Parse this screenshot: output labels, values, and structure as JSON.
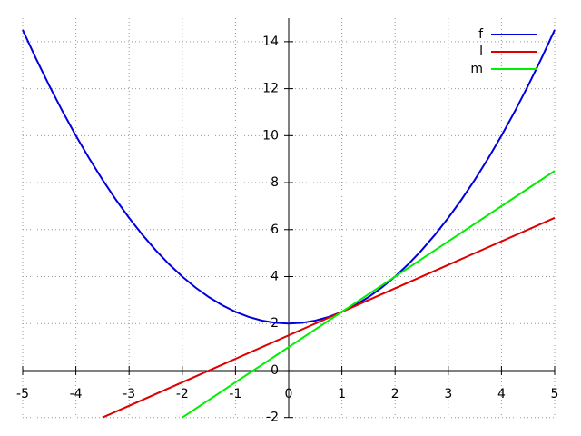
{
  "chart_data": {
    "type": "line",
    "series": [
      {
        "name": "f",
        "color": "#0000dd",
        "x": [
          -5,
          -4.75,
          -4.5,
          -4.25,
          -4,
          -3.75,
          -3.5,
          -3.25,
          -3,
          -2.75,
          -2.5,
          -2.25,
          -2,
          -1.75,
          -1.5,
          -1.25,
          -1,
          -0.75,
          -0.5,
          -0.25,
          0,
          0.25,
          0.5,
          0.75,
          1,
          1.25,
          1.5,
          1.75,
          2,
          2.25,
          2.5,
          2.75,
          3,
          3.25,
          3.5,
          3.75,
          4,
          4.25,
          4.5,
          4.75,
          5
        ],
        "values": [
          14.5,
          13.28125,
          12.125,
          11.03125,
          10,
          9.03125,
          8.125,
          7.28125,
          6.5,
          5.78125,
          5.125,
          4.53125,
          4,
          3.53125,
          3.125,
          2.78125,
          2.5,
          2.28125,
          2.125,
          2.03125,
          2,
          2.03125,
          2.125,
          2.28125,
          2.5,
          2.78125,
          3.125,
          3.53125,
          4,
          4.53125,
          5.125,
          5.78125,
          6.5,
          7.28125,
          8.125,
          9.03125,
          10,
          11.03125,
          12.125,
          13.28125,
          14.5
        ]
      },
      {
        "name": "l",
        "color": "#dd0000",
        "x": [
          -3.5,
          5
        ],
        "values": [
          -2,
          6.5
        ]
      },
      {
        "name": "m",
        "color": "#00ee00",
        "x": [
          -2,
          5
        ],
        "values": [
          -2,
          8.5
        ]
      }
    ],
    "xlim": [
      -5,
      5
    ],
    "ylim": [
      -2,
      15
    ],
    "xticks": [
      -5,
      -4,
      -3,
      -2,
      -1,
      0,
      1,
      2,
      3,
      4,
      5
    ],
    "yticks": [
      -2,
      0,
      2,
      4,
      6,
      8,
      10,
      12,
      14
    ],
    "grid": true,
    "legend": "top-right"
  }
}
